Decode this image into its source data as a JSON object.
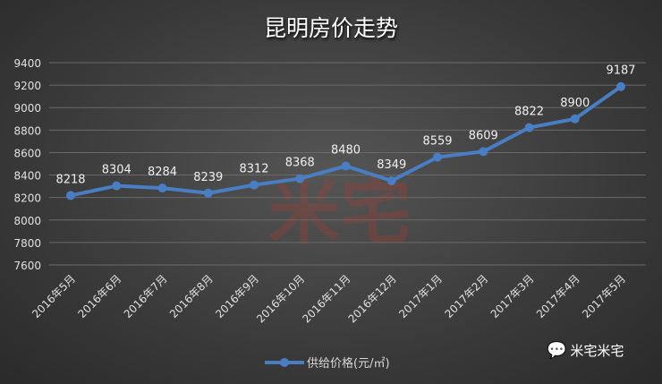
{
  "chart_data": {
    "type": "line",
    "title": "昆明房价走势",
    "categories": [
      "2016年5月",
      "2016年6月",
      "2016年7月",
      "2016年8月",
      "2016年9月",
      "2016年10月",
      "2016年11月",
      "2016年12月",
      "2017年1月",
      "2017年2月",
      "2017年3月",
      "2017年4月",
      "2017年5月"
    ],
    "series": [
      {
        "name": "供给价格(元/㎡)",
        "values": [
          8218,
          8304,
          8284,
          8239,
          8312,
          8368,
          8480,
          8349,
          8559,
          8609,
          8822,
          8900,
          9187
        ],
        "color": "#4a7ec4"
      }
    ],
    "ylim": [
      7600,
      9400
    ],
    "yticks": [
      7600,
      7800,
      8000,
      8200,
      8400,
      8600,
      8800,
      9000,
      9200,
      9400
    ],
    "grid": true,
    "legend": "bottom",
    "data_labels": true
  },
  "watermark": "米宅",
  "brand": {
    "text": "米宅米宅",
    "icon": "wechat-icon"
  }
}
